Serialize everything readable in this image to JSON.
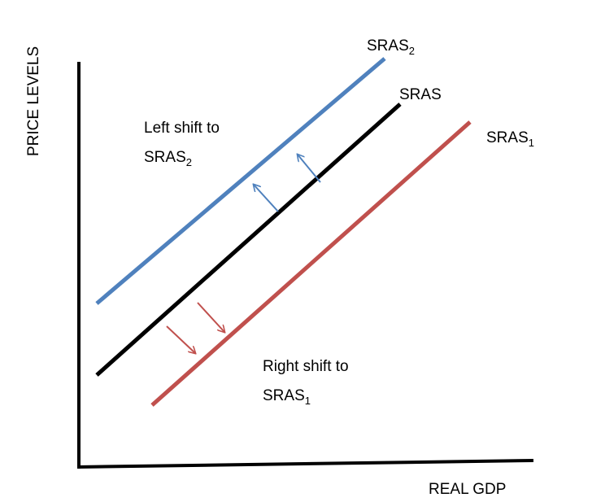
{
  "axes": {
    "y_label": "PRICE LEVELS",
    "x_label": "REAL GDP"
  },
  "curves": {
    "sras2": {
      "base": "SRAS",
      "sub": "2",
      "color": "#4f81bd"
    },
    "sras": {
      "base": "SRAS",
      "color": "#000000"
    },
    "sras1": {
      "base": "SRAS",
      "sub": "1",
      "color": "#c0504d"
    }
  },
  "annotations": {
    "left_shift": {
      "line1": "Left shift to",
      "line2_base": "SRAS",
      "line2_sub": "2"
    },
    "right_shift": {
      "line1": "Right shift to",
      "line2_base": "SRAS",
      "line2_sub": "1"
    }
  },
  "arrows": {
    "up_left_color": "#4f81bd",
    "down_right_color": "#c0504d"
  },
  "colors": {
    "axis": "#000000",
    "background": "#ffffff"
  }
}
